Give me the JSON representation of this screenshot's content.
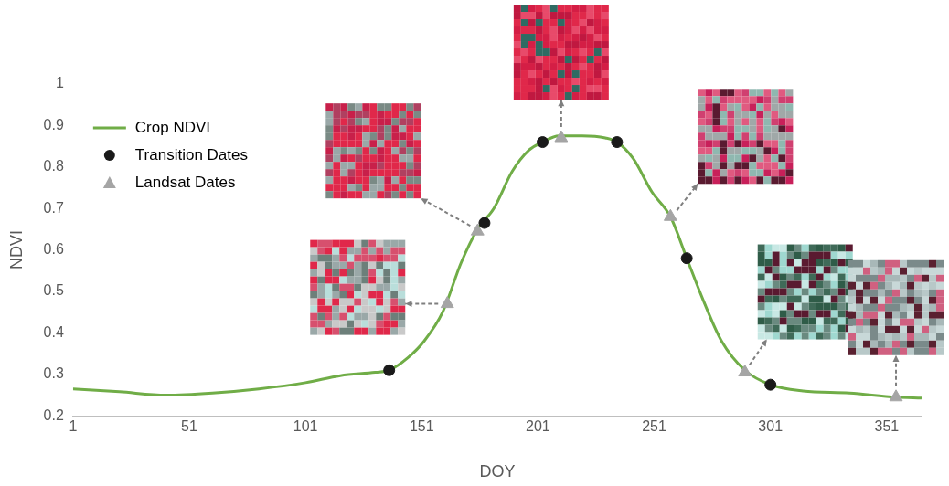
{
  "chart_data": {
    "type": "line",
    "x_label": "DOY",
    "y_label": "NDVI",
    "xlim": [
      1,
      366
    ],
    "xticks": [
      1,
      51,
      101,
      151,
      201,
      251,
      301,
      351
    ],
    "ylim": [
      0.2,
      1
    ],
    "yticks": [
      0.2,
      0.3,
      0.4,
      0.5,
      0.6,
      0.7,
      0.8,
      0.9,
      1
    ],
    "grid": false,
    "legend": "upper left",
    "series": [
      {
        "name": "Crop NDVI",
        "type": "line",
        "color": "#70ad47",
        "marker": "none",
        "line_style": "solid",
        "x": [
          1,
          21,
          41,
          61,
          81,
          101,
          116,
          131,
          137,
          145,
          152,
          160,
          168,
          175,
          182,
          190,
          197,
          203,
          210,
          220,
          230,
          235,
          242,
          250,
          258,
          265,
          272,
          280,
          290,
          301,
          315,
          335,
          355,
          366
        ],
        "values": [
          0.265,
          0.258,
          0.25,
          0.255,
          0.265,
          0.28,
          0.297,
          0.305,
          0.31,
          0.34,
          0.38,
          0.45,
          0.57,
          0.65,
          0.7,
          0.79,
          0.84,
          0.86,
          0.875,
          0.875,
          0.87,
          0.86,
          0.82,
          0.74,
          0.68,
          0.58,
          0.48,
          0.38,
          0.31,
          0.275,
          0.26,
          0.255,
          0.245,
          0.243
        ]
      },
      {
        "name": "Transition Dates",
        "type": "scatter",
        "color": "#1a1a1a",
        "marker": "circle",
        "x": [
          137,
          178,
          203,
          235,
          265,
          301
        ],
        "values": [
          0.31,
          0.665,
          0.86,
          0.86,
          0.58,
          0.275
        ]
      },
      {
        "name": "Landsat Dates",
        "type": "scatter",
        "color": "#a5a5a5",
        "marker": "triangle",
        "x": [
          162,
          175,
          211,
          258,
          290,
          355
        ],
        "values": [
          0.47,
          0.645,
          0.87,
          0.68,
          0.305,
          0.245
        ]
      }
    ]
  }
}
